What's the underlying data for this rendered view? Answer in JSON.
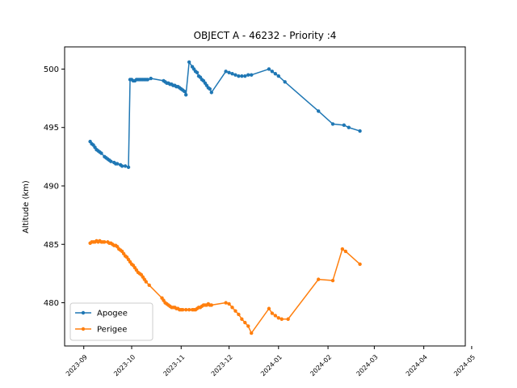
{
  "chart_data": {
    "type": "line",
    "title": "OBJECT A - 46232 - Priority :4",
    "xlabel": "",
    "ylabel": "Altitude (km)",
    "ylim": [
      476.3,
      501.9
    ],
    "xlim": [
      "2023-08-20",
      "2024-04-27"
    ],
    "yticks": [
      480,
      485,
      490,
      495,
      500
    ],
    "xticks": [
      "2023-09-01",
      "2023-10-01",
      "2023-11-01",
      "2023-12-01",
      "2024-01-01",
      "2024-02-01",
      "2024-03-01",
      "2024-04-01",
      "2024-05-01"
    ],
    "xtick_labels": [
      "2023-09",
      "2023-10",
      "2023-11",
      "2023-12",
      "2024-01",
      "2024-02",
      "2024-03",
      "2024-04",
      "2024-05"
    ],
    "grid": false,
    "legend_position": "lower-left",
    "series": [
      {
        "name": "Apogee",
        "color": "#1f77b4",
        "points": [
          [
            "2023-09-05",
            493.8
          ],
          [
            "2023-09-06",
            493.6
          ],
          [
            "2023-09-07",
            493.5
          ],
          [
            "2023-09-08",
            493.3
          ],
          [
            "2023-09-09",
            493.1
          ],
          [
            "2023-09-10",
            493.0
          ],
          [
            "2023-09-11",
            492.9
          ],
          [
            "2023-09-12",
            492.8
          ],
          [
            "2023-09-14",
            492.5
          ],
          [
            "2023-09-15",
            492.4
          ],
          [
            "2023-09-16",
            492.3
          ],
          [
            "2023-09-17",
            492.2
          ],
          [
            "2023-09-18",
            492.1
          ],
          [
            "2023-09-20",
            492.0
          ],
          [
            "2023-09-21",
            491.9
          ],
          [
            "2023-09-22",
            491.9
          ],
          [
            "2023-09-24",
            491.8
          ],
          [
            "2023-09-25",
            491.7
          ],
          [
            "2023-09-27",
            491.7
          ],
          [
            "2023-09-29",
            491.6
          ],
          [
            "2023-09-30",
            499.1
          ],
          [
            "2023-10-01",
            499.1
          ],
          [
            "2023-10-02",
            499.0
          ],
          [
            "2023-10-03",
            499.0
          ],
          [
            "2023-10-04",
            499.1
          ],
          [
            "2023-10-05",
            499.1
          ],
          [
            "2023-10-06",
            499.1
          ],
          [
            "2023-10-07",
            499.1
          ],
          [
            "2023-10-08",
            499.1
          ],
          [
            "2023-10-09",
            499.1
          ],
          [
            "2023-10-10",
            499.1
          ],
          [
            "2023-10-11",
            499.1
          ],
          [
            "2023-10-13",
            499.2
          ],
          [
            "2023-10-21",
            499.0
          ],
          [
            "2023-10-22",
            498.9
          ],
          [
            "2023-10-23",
            498.8
          ],
          [
            "2023-10-24",
            498.8
          ],
          [
            "2023-10-25",
            498.7
          ],
          [
            "2023-10-26",
            498.7
          ],
          [
            "2023-10-27",
            498.6
          ],
          [
            "2023-10-28",
            498.6
          ],
          [
            "2023-10-29",
            498.5
          ],
          [
            "2023-10-30",
            498.5
          ],
          [
            "2023-10-31",
            498.4
          ],
          [
            "2023-11-01",
            498.3
          ],
          [
            "2023-11-02",
            498.2
          ],
          [
            "2023-11-03",
            498.1
          ],
          [
            "2023-11-04",
            497.8
          ],
          [
            "2023-11-06",
            500.6
          ],
          [
            "2023-11-08",
            500.2
          ],
          [
            "2023-11-09",
            500.0
          ],
          [
            "2023-11-10",
            499.8
          ],
          [
            "2023-11-11",
            499.7
          ],
          [
            "2023-11-12",
            499.4
          ],
          [
            "2023-11-13",
            499.3
          ],
          [
            "2023-11-14",
            499.1
          ],
          [
            "2023-11-15",
            499.0
          ],
          [
            "2023-11-16",
            498.8
          ],
          [
            "2023-11-17",
            498.6
          ],
          [
            "2023-11-18",
            498.4
          ],
          [
            "2023-11-19",
            498.3
          ],
          [
            "2023-11-20",
            498.0
          ],
          [
            "2023-11-29",
            499.8
          ],
          [
            "2023-12-01",
            499.7
          ],
          [
            "2023-12-03",
            499.6
          ],
          [
            "2023-12-05",
            499.5
          ],
          [
            "2023-12-07",
            499.4
          ],
          [
            "2023-12-09",
            499.4
          ],
          [
            "2023-12-11",
            499.4
          ],
          [
            "2023-12-13",
            499.5
          ],
          [
            "2023-12-15",
            499.5
          ],
          [
            "2023-12-26",
            500.0
          ],
          [
            "2023-12-28",
            499.8
          ],
          [
            "2023-12-30",
            499.6
          ],
          [
            "2024-01-01",
            499.4
          ],
          [
            "2024-01-05",
            498.9
          ],
          [
            "2024-01-26",
            496.4
          ],
          [
            "2024-02-04",
            495.3
          ],
          [
            "2024-02-11",
            495.2
          ],
          [
            "2024-02-14",
            495.0
          ],
          [
            "2024-02-21",
            494.7
          ]
        ]
      },
      {
        "name": "Perigee",
        "color": "#ff7f0e",
        "points": [
          [
            "2023-09-05",
            485.1
          ],
          [
            "2023-09-06",
            485.2
          ],
          [
            "2023-09-07",
            485.2
          ],
          [
            "2023-09-08",
            485.2
          ],
          [
            "2023-09-09",
            485.3
          ],
          [
            "2023-09-10",
            485.2
          ],
          [
            "2023-09-11",
            485.3
          ],
          [
            "2023-09-12",
            485.2
          ],
          [
            "2023-09-13",
            485.2
          ],
          [
            "2023-09-14",
            485.2
          ],
          [
            "2023-09-16",
            485.2
          ],
          [
            "2023-09-17",
            485.1
          ],
          [
            "2023-09-18",
            485.1
          ],
          [
            "2023-09-19",
            485.0
          ],
          [
            "2023-09-20",
            484.9
          ],
          [
            "2023-09-21",
            484.9
          ],
          [
            "2023-09-22",
            484.8
          ],
          [
            "2023-09-23",
            484.6
          ],
          [
            "2023-09-24",
            484.5
          ],
          [
            "2023-09-25",
            484.4
          ],
          [
            "2023-09-26",
            484.2
          ],
          [
            "2023-09-27",
            484.0
          ],
          [
            "2023-09-28",
            483.9
          ],
          [
            "2023-09-29",
            483.7
          ],
          [
            "2023-09-30",
            483.5
          ],
          [
            "2023-10-01",
            483.3
          ],
          [
            "2023-10-02",
            483.2
          ],
          [
            "2023-10-03",
            483.0
          ],
          [
            "2023-10-04",
            482.8
          ],
          [
            "2023-10-05",
            482.6
          ],
          [
            "2023-10-06",
            482.5
          ],
          [
            "2023-10-07",
            482.4
          ],
          [
            "2023-10-08",
            482.2
          ],
          [
            "2023-10-09",
            482.0
          ],
          [
            "2023-10-10",
            481.8
          ],
          [
            "2023-10-12",
            481.5
          ],
          [
            "2023-10-20",
            480.4
          ],
          [
            "2023-10-21",
            480.2
          ],
          [
            "2023-10-22",
            480.0
          ],
          [
            "2023-10-23",
            479.9
          ],
          [
            "2023-10-24",
            479.8
          ],
          [
            "2023-10-25",
            479.7
          ],
          [
            "2023-10-26",
            479.6
          ],
          [
            "2023-10-27",
            479.6
          ],
          [
            "2023-10-28",
            479.6
          ],
          [
            "2023-10-29",
            479.5
          ],
          [
            "2023-10-30",
            479.5
          ],
          [
            "2023-10-31",
            479.4
          ],
          [
            "2023-11-01",
            479.4
          ],
          [
            "2023-11-02",
            479.4
          ],
          [
            "2023-11-04",
            479.4
          ],
          [
            "2023-11-06",
            479.4
          ],
          [
            "2023-11-08",
            479.4
          ],
          [
            "2023-11-09",
            479.4
          ],
          [
            "2023-11-10",
            479.4
          ],
          [
            "2023-11-11",
            479.5
          ],
          [
            "2023-11-12",
            479.6
          ],
          [
            "2023-11-13",
            479.6
          ],
          [
            "2023-11-14",
            479.7
          ],
          [
            "2023-11-15",
            479.8
          ],
          [
            "2023-11-16",
            479.8
          ],
          [
            "2023-11-17",
            479.8
          ],
          [
            "2023-11-18",
            479.9
          ],
          [
            "2023-11-19",
            479.8
          ],
          [
            "2023-11-20",
            479.8
          ],
          [
            "2023-11-29",
            480.0
          ],
          [
            "2023-12-01",
            479.9
          ],
          [
            "2023-12-03",
            479.6
          ],
          [
            "2023-12-05",
            479.3
          ],
          [
            "2023-12-07",
            479.0
          ],
          [
            "2023-12-09",
            478.6
          ],
          [
            "2023-12-11",
            478.3
          ],
          [
            "2023-12-13",
            478.0
          ],
          [
            "2023-12-15",
            477.4
          ],
          [
            "2023-12-26",
            479.5
          ],
          [
            "2023-12-28",
            479.1
          ],
          [
            "2023-12-30",
            478.9
          ],
          [
            "2024-01-01",
            478.7
          ],
          [
            "2024-01-03",
            478.6
          ],
          [
            "2024-01-07",
            478.6
          ],
          [
            "2024-01-26",
            482.0
          ],
          [
            "2024-02-04",
            481.9
          ],
          [
            "2024-02-10",
            484.6
          ],
          [
            "2024-02-12",
            484.4
          ],
          [
            "2024-02-21",
            483.3
          ]
        ]
      }
    ]
  }
}
